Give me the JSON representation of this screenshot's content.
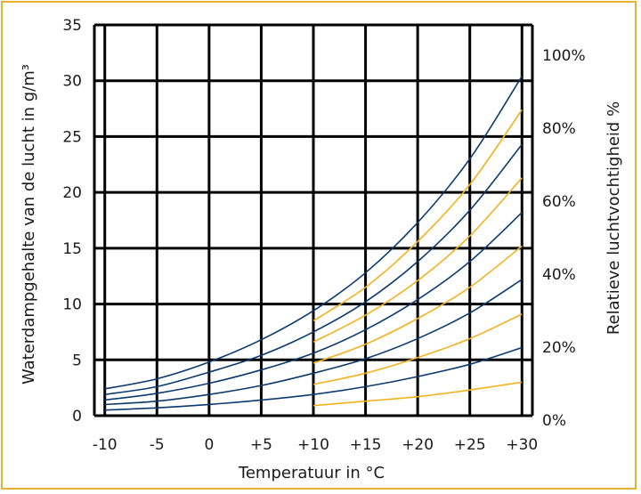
{
  "chart_data": {
    "type": "line",
    "title": "",
    "xlabel": "Temperatuur in °C",
    "ylabel": "Waterdampgehalte van de lucht in g/m³",
    "y2label": "Relatieve luchtvochtigheid %",
    "xlim": [
      -11,
      31
    ],
    "ylim": [
      0,
      35
    ],
    "x_tick_labels": [
      "-10",
      "-5",
      "0",
      "+5",
      "+10",
      "+15",
      "+20",
      "+25",
      "+30"
    ],
    "y_tick_labels": [
      "0",
      "5",
      "10",
      "15",
      "20",
      "25",
      "30",
      "35"
    ],
    "y2_tick_labels": [
      "0%",
      "20%",
      "40%",
      "60%",
      "80%",
      "100%"
    ],
    "grid": true,
    "colors": {
      "blue": "#0b3a6e",
      "gold": "#f2b21d",
      "frame": "#e8b230",
      "grid": "#000000"
    },
    "series": [
      {
        "rh": 100,
        "color": "blue",
        "x": [
          -10,
          -5,
          0,
          5,
          10,
          15,
          20,
          25,
          30
        ],
        "y": [
          2.4,
          3.3,
          4.8,
          6.8,
          9.4,
          12.8,
          17.3,
          23.0,
          30.4
        ]
      },
      {
        "rh": 90,
        "color": "gold",
        "x": [
          10,
          15,
          20,
          25,
          30
        ],
        "y": [
          8.5,
          11.5,
          15.6,
          20.7,
          27.4
        ]
      },
      {
        "rh": 80,
        "color": "blue",
        "x": [
          -10,
          -5,
          0,
          5,
          10,
          15,
          20,
          25,
          30
        ],
        "y": [
          1.9,
          2.6,
          3.9,
          5.4,
          7.5,
          10.2,
          13.8,
          18.4,
          24.3
        ]
      },
      {
        "rh": 70,
        "color": "gold",
        "x": [
          10,
          15,
          20,
          25,
          30
        ],
        "y": [
          6.6,
          9.0,
          12.1,
          16.1,
          21.3
        ]
      },
      {
        "rh": 60,
        "color": "blue",
        "x": [
          -10,
          -5,
          0,
          5,
          10,
          15,
          20,
          25,
          30
        ],
        "y": [
          1.4,
          2.0,
          2.9,
          4.1,
          5.6,
          7.7,
          10.4,
          13.8,
          18.2
        ]
      },
      {
        "rh": 50,
        "color": "gold",
        "x": [
          10,
          15,
          20,
          25,
          30
        ],
        "y": [
          4.7,
          6.4,
          8.7,
          11.5,
          15.2
        ]
      },
      {
        "rh": 40,
        "color": "blue",
        "x": [
          -10,
          -5,
          0,
          5,
          10,
          15,
          20,
          25,
          30
        ],
        "y": [
          1.0,
          1.3,
          1.9,
          2.7,
          3.8,
          5.1,
          6.9,
          9.2,
          12.2
        ]
      },
      {
        "rh": 30,
        "color": "gold",
        "x": [
          10,
          15,
          20,
          25,
          30
        ],
        "y": [
          2.8,
          3.8,
          5.2,
          6.9,
          9.1
        ]
      },
      {
        "rh": 20,
        "color": "blue",
        "x": [
          -10,
          -5,
          0,
          5,
          10,
          15,
          20,
          25,
          30
        ],
        "y": [
          0.5,
          0.7,
          1.0,
          1.4,
          1.9,
          2.6,
          3.5,
          4.6,
          6.1
        ]
      },
      {
        "rh": 10,
        "color": "gold",
        "x": [
          10,
          15,
          20,
          25,
          30
        ],
        "y": [
          0.9,
          1.3,
          1.7,
          2.3,
          3.0
        ]
      }
    ]
  }
}
